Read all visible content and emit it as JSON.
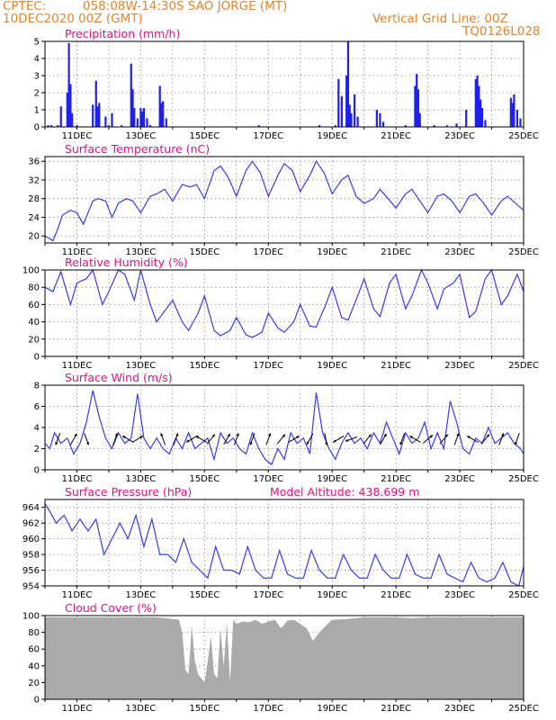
{
  "header": {
    "source": "CPTEC:",
    "location": "058:08W-14:30S  SAO JORGE (MT)",
    "date": "10DEC2020 00Z (GMT)",
    "grid_note": "Vertical Grid Line: 00Z",
    "model_code": "TQ0126L028"
  },
  "colors": {
    "header": "#e8822a",
    "title": "#e0107e",
    "line": "#3a3ae8",
    "bar": "#2020ee",
    "cloud": "#aaaaaa",
    "arrow": "#000000"
  },
  "chart_data": [
    {
      "type": "bar",
      "title": "Precipitation (mm/h)",
      "xlim": [
        10.0,
        25.0
      ],
      "ylim": [
        0,
        5
      ],
      "yticks": [
        0,
        1,
        2,
        3,
        4,
        5
      ],
      "xticks": [
        "11DEC",
        "13DEC",
        "15DEC",
        "17DEC",
        "19DEC",
        "21DEC",
        "23DEC",
        "25DEC"
      ],
      "x": [
        10.1,
        10.2,
        10.4,
        10.5,
        10.7,
        10.75,
        10.8,
        10.85,
        11.0,
        11.5,
        11.6,
        11.65,
        11.7,
        11.9,
        12.0,
        12.1,
        12.4,
        12.7,
        12.75,
        12.8,
        12.9,
        13.0,
        13.05,
        13.1,
        13.2,
        13.3,
        13.6,
        13.65,
        13.7,
        13.8,
        16.7,
        18.6,
        19.1,
        19.2,
        19.3,
        19.45,
        19.5,
        19.55,
        19.6,
        19.7,
        19.8,
        20.4,
        20.5,
        20.6,
        21.3,
        21.6,
        21.65,
        21.7,
        21.75,
        22.2,
        22.6,
        22.9,
        23.2,
        23.5,
        23.55,
        23.6,
        23.65,
        23.7,
        23.8,
        24.6,
        24.65,
        24.7,
        24.8,
        24.9
      ],
      "values": [
        0.1,
        0.1,
        0.1,
        1.2,
        2.0,
        4.9,
        2.5,
        0.8,
        0.1,
        1.3,
        2.7,
        1.2,
        1.4,
        0.6,
        0.1,
        0.8,
        0.1,
        3.7,
        2.2,
        1.1,
        0.5,
        1.1,
        0.9,
        1.1,
        0.5,
        0.1,
        2.4,
        1.4,
        1.5,
        0.5,
        0.1,
        0.1,
        0.1,
        2.8,
        1.8,
        3.0,
        5.0,
        1.3,
        0.8,
        1.9,
        0.6,
        1.0,
        0.8,
        0.3,
        0.1,
        2.4,
        3.1,
        2.2,
        0.8,
        0.1,
        0.1,
        0.2,
        1.0,
        2.8,
        3.0,
        2.4,
        1.6,
        1.1,
        0.4,
        1.7,
        1.4,
        1.9,
        1.0,
        0.5
      ]
    },
    {
      "type": "line",
      "title": "Surface Temperature (nC)",
      "xlim": [
        10.0,
        25.0
      ],
      "ylim": [
        18.5,
        37
      ],
      "yticks": [
        20,
        24,
        28,
        32,
        36
      ],
      "xticks": [
        "11DEC",
        "13DEC",
        "15DEC",
        "17DEC",
        "19DEC",
        "21DEC",
        "23DEC",
        "25DEC"
      ],
      "x": [
        10.0,
        10.25,
        10.4,
        10.55,
        10.8,
        11.0,
        11.2,
        11.5,
        11.65,
        11.9,
        12.1,
        12.3,
        12.55,
        12.75,
        13.0,
        13.3,
        13.5,
        13.75,
        14.0,
        14.3,
        14.55,
        14.75,
        15.0,
        15.3,
        15.5,
        15.75,
        16.0,
        16.3,
        16.5,
        16.75,
        17.0,
        17.3,
        17.5,
        17.75,
        18.0,
        18.3,
        18.5,
        18.75,
        19.0,
        19.3,
        19.5,
        19.75,
        20.0,
        20.3,
        20.5,
        20.75,
        21.0,
        21.3,
        21.5,
        21.75,
        22.0,
        22.3,
        22.5,
        22.75,
        23.0,
        23.3,
        23.5,
        23.75,
        24.0,
        24.3,
        24.5,
        24.75,
        25.0
      ],
      "values": [
        20,
        19,
        21.5,
        24.5,
        25.5,
        25,
        22.5,
        27.5,
        28,
        27.5,
        24,
        27,
        28,
        27.5,
        25,
        28.5,
        29,
        30,
        27.5,
        31,
        30.5,
        31,
        28,
        34,
        35,
        32.5,
        28.5,
        34,
        36,
        33.5,
        28.5,
        33,
        35.5,
        34,
        29.5,
        33,
        36,
        33.5,
        29,
        32,
        33,
        28.5,
        27,
        28,
        30,
        28,
        26,
        29,
        30,
        27.5,
        25,
        28.5,
        29,
        27.5,
        25,
        28.5,
        29,
        27,
        24.5,
        27.5,
        28.5,
        27,
        25.5
      ]
    },
    {
      "type": "line",
      "title": "Relative Humidity (%)",
      "xlim": [
        10.0,
        25.0
      ],
      "ylim": [
        0,
        100
      ],
      "yticks": [
        0,
        20,
        40,
        60,
        80,
        100
      ],
      "xticks": [
        "11DEC",
        "13DEC",
        "15DEC",
        "17DEC",
        "19DEC",
        "21DEC",
        "23DEC",
        "25DEC"
      ],
      "x": [
        10.0,
        10.25,
        10.5,
        10.8,
        11.0,
        11.3,
        11.5,
        11.8,
        12.0,
        12.3,
        12.5,
        12.8,
        13.0,
        13.3,
        13.5,
        13.8,
        14.0,
        14.3,
        14.5,
        14.8,
        15.0,
        15.3,
        15.5,
        15.8,
        16.0,
        16.3,
        16.5,
        16.8,
        17.0,
        17.3,
        17.5,
        17.8,
        18.0,
        18.3,
        18.5,
        18.8,
        19.0,
        19.3,
        19.5,
        19.8,
        20.0,
        20.3,
        20.5,
        20.8,
        21.0,
        21.3,
        21.5,
        21.8,
        22.0,
        22.3,
        22.5,
        22.8,
        23.0,
        23.3,
        23.5,
        23.8,
        24.0,
        24.3,
        24.5,
        24.8,
        25.0
      ],
      "values": [
        80,
        75,
        98,
        60,
        85,
        90,
        100,
        60,
        75,
        100,
        95,
        65,
        100,
        60,
        40,
        55,
        65,
        40,
        30,
        50,
        70,
        30,
        24,
        30,
        45,
        25,
        22,
        28,
        50,
        33,
        28,
        40,
        60,
        35,
        34,
        60,
        80,
        45,
        42,
        70,
        90,
        55,
        46,
        85,
        95,
        55,
        70,
        100,
        85,
        55,
        78,
        85,
        95,
        45,
        52,
        90,
        100,
        60,
        70,
        95,
        75
      ]
    },
    {
      "type": "line",
      "title": "Surface Wind (m/s)",
      "xlim": [
        10.0,
        25.0
      ],
      "ylim": [
        0,
        8
      ],
      "yticks": [
        0,
        2,
        4,
        6,
        8
      ],
      "xticks": [
        "11DEC",
        "13DEC",
        "15DEC",
        "17DEC",
        "19DEC",
        "21DEC",
        "23DEC",
        "25DEC"
      ],
      "x": [
        10.0,
        10.15,
        10.3,
        10.5,
        10.7,
        10.9,
        11.1,
        11.3,
        11.5,
        11.7,
        11.9,
        12.1,
        12.3,
        12.5,
        12.7,
        12.9,
        13.1,
        13.3,
        13.5,
        13.7,
        13.9,
        14.1,
        14.3,
        14.5,
        14.7,
        14.9,
        15.1,
        15.3,
        15.5,
        15.7,
        15.9,
        16.1,
        16.3,
        16.5,
        16.7,
        16.9,
        17.1,
        17.3,
        17.5,
        17.7,
        17.9,
        18.1,
        18.3,
        18.5,
        18.7,
        18.9,
        19.1,
        19.3,
        19.5,
        19.7,
        19.9,
        20.1,
        20.3,
        20.5,
        20.7,
        20.9,
        21.1,
        21.3,
        21.5,
        21.7,
        21.9,
        22.1,
        22.3,
        22.5,
        22.7,
        22.9,
        23.1,
        23.3,
        23.5,
        23.7,
        23.9,
        24.1,
        24.3,
        24.5,
        24.7,
        24.9,
        25.0
      ],
      "values": [
        2.5,
        2.0,
        3.5,
        2.5,
        3.0,
        1.5,
        2.5,
        4.5,
        7.5,
        5.0,
        3.0,
        2.0,
        3.5,
        2.5,
        3.0,
        7.2,
        3.0,
        2.0,
        3.0,
        2.0,
        1.5,
        3.0,
        2.0,
        3.5,
        2.0,
        2.5,
        3.0,
        1.0,
        3.5,
        2.5,
        3.0,
        2.0,
        1.5,
        3.5,
        2.0,
        1.0,
        0.5,
        2.0,
        1.0,
        3.5,
        2.5,
        3.0,
        1.5,
        7.3,
        3.5,
        2.0,
        1.0,
        2.5,
        3.5,
        2.5,
        3.0,
        2.0,
        3.5,
        2.5,
        4.5,
        3.0,
        1.5,
        3.5,
        2.5,
        3.0,
        4.5,
        2.0,
        3.5,
        2.0,
        6.5,
        4.5,
        2.0,
        1.5,
        3.0,
        2.5,
        4.0,
        2.5,
        3.0,
        3.5,
        2.5,
        2.0,
        1.5
      ],
      "arrows": [
        {
          "x": 10.4,
          "dir": 200
        },
        {
          "x": 10.9,
          "dir": 30
        },
        {
          "x": 11.3,
          "dir": 160
        },
        {
          "x": 12.2,
          "dir": 20
        },
        {
          "x": 12.6,
          "dir": 300
        },
        {
          "x": 12.9,
          "dir": 60
        },
        {
          "x": 13.7,
          "dir": 340
        },
        {
          "x": 14.1,
          "dir": 20
        },
        {
          "x": 14.6,
          "dir": 240
        },
        {
          "x": 14.9,
          "dir": 300
        },
        {
          "x": 15.2,
          "dir": 40
        },
        {
          "x": 15.7,
          "dir": 30
        },
        {
          "x": 16.0,
          "dir": 20
        },
        {
          "x": 16.5,
          "dir": 200
        },
        {
          "x": 17.0,
          "dir": 20
        },
        {
          "x": 17.4,
          "dir": 40
        },
        {
          "x": 17.8,
          "dir": 60
        },
        {
          "x": 18.3,
          "dir": 210
        },
        {
          "x": 18.8,
          "dir": 170
        },
        {
          "x": 19.2,
          "dir": 240
        },
        {
          "x": 19.6,
          "dir": 250
        },
        {
          "x": 20.1,
          "dir": 40
        },
        {
          "x": 20.6,
          "dir": 30
        },
        {
          "x": 21.2,
          "dir": 200
        },
        {
          "x": 21.6,
          "dir": 300
        },
        {
          "x": 22.0,
          "dir": 50
        },
        {
          "x": 22.5,
          "dir": 40
        },
        {
          "x": 22.9,
          "dir": 20
        },
        {
          "x": 23.4,
          "dir": 300
        },
        {
          "x": 23.8,
          "dir": 40
        },
        {
          "x": 24.3,
          "dir": 20
        },
        {
          "x": 24.8,
          "dir": 200
        }
      ]
    },
    {
      "type": "line",
      "title": "Surface Pressure (hPa)",
      "annotation": "Model Altitude: 438.699 m",
      "xlim": [
        10.0,
        25.0
      ],
      "ylim": [
        954,
        965
      ],
      "yticks": [
        954,
        956,
        958,
        960,
        962,
        964
      ],
      "xticks": [
        "11DEC",
        "13DEC",
        "15DEC",
        "17DEC",
        "19DEC",
        "21DEC",
        "23DEC",
        "25DEC"
      ],
      "x": [
        10.0,
        10.15,
        10.35,
        10.6,
        10.85,
        11.1,
        11.35,
        11.6,
        11.85,
        12.1,
        12.35,
        12.6,
        12.85,
        13.1,
        13.35,
        13.6,
        13.85,
        14.1,
        14.35,
        14.6,
        14.85,
        15.1,
        15.35,
        15.6,
        15.85,
        16.1,
        16.35,
        16.6,
        16.85,
        17.1,
        17.35,
        17.6,
        17.85,
        18.1,
        18.35,
        18.6,
        18.85,
        19.1,
        19.35,
        19.6,
        19.85,
        20.1,
        20.35,
        20.6,
        20.85,
        21.1,
        21.35,
        21.6,
        21.85,
        22.1,
        22.35,
        22.6,
        22.85,
        23.1,
        23.35,
        23.6,
        23.85,
        24.1,
        24.35,
        24.6,
        24.85,
        25.0
      ],
      "values": [
        964.5,
        963.5,
        962,
        963,
        961,
        962.5,
        961,
        962.5,
        958,
        960,
        962,
        960,
        963,
        959,
        962.5,
        958,
        958,
        957,
        960,
        957,
        956,
        955,
        959,
        956,
        956,
        955.5,
        959,
        956,
        955,
        955,
        958.5,
        955.5,
        955,
        955,
        958.5,
        956,
        955,
        955,
        958,
        956,
        955,
        955,
        958,
        956,
        955,
        955,
        958,
        955.5,
        955,
        955,
        958,
        955.5,
        955,
        954.5,
        957,
        955,
        954.5,
        955,
        957,
        954.5,
        954,
        956.5
      ]
    },
    {
      "type": "area",
      "title": "Cloud Cover (%)",
      "xlim": [
        10.0,
        25.0
      ],
      "ylim": [
        0,
        100
      ],
      "yticks": [
        0,
        20,
        40,
        60,
        80,
        100
      ],
      "xticks": [
        "11DEC",
        "13DEC",
        "15DEC",
        "17DEC",
        "19DEC",
        "21DEC",
        "23DEC",
        "25DEC"
      ],
      "x": [
        10.0,
        10.5,
        11.0,
        11.5,
        12.0,
        12.5,
        13.0,
        13.5,
        14.0,
        14.2,
        14.3,
        14.4,
        14.5,
        14.6,
        14.7,
        14.8,
        14.9,
        15.0,
        15.1,
        15.2,
        15.3,
        15.4,
        15.5,
        15.6,
        15.7,
        15.8,
        15.9,
        16.0,
        16.2,
        16.4,
        16.6,
        16.8,
        17.0,
        17.2,
        17.4,
        17.6,
        17.8,
        18.0,
        18.2,
        18.4,
        18.6,
        18.8,
        19.0,
        19.5,
        20.0,
        20.5,
        21.0,
        21.5,
        22.0,
        22.5,
        23.0,
        23.5,
        24.0,
        24.5,
        25.0
      ],
      "values": [
        98,
        98,
        98,
        98,
        98,
        98,
        98,
        98,
        96,
        95,
        80,
        35,
        30,
        88,
        45,
        30,
        25,
        20,
        45,
        75,
        30,
        25,
        85,
        40,
        92,
        20,
        95,
        90,
        93,
        92,
        95,
        90,
        93,
        95,
        85,
        94,
        95,
        90,
        85,
        70,
        80,
        88,
        95,
        96,
        98,
        98,
        98,
        97,
        98,
        98,
        98,
        98,
        98,
        98,
        98
      ]
    }
  ]
}
